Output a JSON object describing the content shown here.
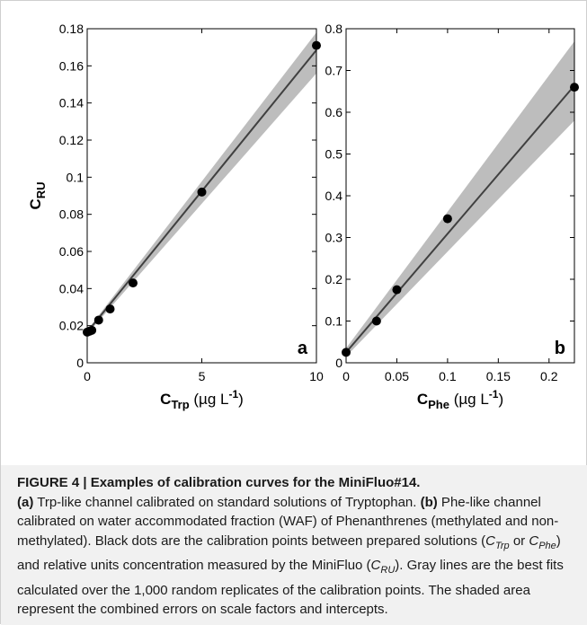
{
  "figure": {
    "caption": {
      "title": "FIGURE 4 | Examples of calibration curves for the MiniFluo#14.",
      "a_marker": "(a)",
      "a_text": " Trp-like channel calibrated on standard solutions of Tryptophan. ",
      "b_marker": "(b)",
      "b_text": " Phe-like channel calibrated on water accommodated fraction (WAF) of Phenanthrenes (methylated and non-methylated). Black dots are the calibration points between prepared solutions (",
      "c_trp_main": "C",
      "c_trp_sub": "Trp",
      "or_text": " or ",
      "c_phe_main": "C",
      "c_phe_sub": "Phe",
      "mid_text": ") and relative units concentration measured by the MiniFluo (",
      "c_ru_main": "C",
      "c_ru_sub": "RU",
      "end_text": "). Gray lines are the best fits calculated over the 1,000 random replicates of the calibration points. The shaded area represent the combined errors on scale factors and intercepts."
    }
  },
  "chart_data": [
    {
      "type": "scatter",
      "panel": "a",
      "ylabel_main": "C",
      "ylabel_sub": "RU",
      "xlabel_main": "C",
      "xlabel_sub": "Trp",
      "xlabel_unit": "(µg L",
      "xlabel_sup": "-1",
      "xlabel_close": ")",
      "xlim": [
        0,
        10
      ],
      "ylim": [
        0,
        0.18
      ],
      "xticks": [
        0,
        5,
        10
      ],
      "xtick_labels": [
        "0",
        "5",
        "10"
      ],
      "yticks": [
        0,
        0.02,
        0.04,
        0.06,
        0.08,
        0.1,
        0.12,
        0.14,
        0.16,
        0.18
      ],
      "ytick_labels": [
        "0",
        "0.02",
        "0.04",
        "0.06",
        "0.08",
        "0.1",
        "0.12",
        "0.14",
        "0.16",
        "0.18"
      ],
      "points": [
        {
          "x": 0,
          "y": 0.0165
        },
        {
          "x": 0.1,
          "y": 0.017
        },
        {
          "x": 0.2,
          "y": 0.0175
        },
        {
          "x": 0.5,
          "y": 0.023
        },
        {
          "x": 1,
          "y": 0.029
        },
        {
          "x": 2,
          "y": 0.043
        },
        {
          "x": 5,
          "y": 0.092
        },
        {
          "x": 10,
          "y": 0.171
        }
      ],
      "fit": {
        "intercept": 0.0165,
        "slope": 0.0152
      },
      "band": {
        "x": [
          0,
          10
        ],
        "lower": [
          0.0155,
          0.156
        ],
        "upper": [
          0.0175,
          0.178
        ]
      },
      "colors": {
        "band": "#bdbdbd",
        "line": "#404040",
        "points": "#000000"
      }
    },
    {
      "type": "scatter",
      "panel": "b",
      "ylabel_main": "",
      "xlabel_main": "C",
      "xlabel_sub": "Phe",
      "xlabel_unit": "(µg L",
      "xlabel_sup": "-1",
      "xlabel_close": ")",
      "xlim": [
        0,
        0.225
      ],
      "ylim": [
        0,
        0.8
      ],
      "xticks": [
        0,
        0.05,
        0.1,
        0.15,
        0.2
      ],
      "xtick_labels": [
        "0",
        "0.05",
        "0.1",
        "0.15",
        "0.2"
      ],
      "yticks": [
        0,
        0.1,
        0.2,
        0.3,
        0.4,
        0.5,
        0.6,
        0.7,
        0.8
      ],
      "ytick_labels": [
        "0",
        "0.1",
        "0.2",
        "0.3",
        "0.4",
        "0.5",
        "0.6",
        "0.7",
        "0.8"
      ],
      "points": [
        {
          "x": 0,
          "y": 0.025
        },
        {
          "x": 0.03,
          "y": 0.1
        },
        {
          "x": 0.05,
          "y": 0.175
        },
        {
          "x": 0.1,
          "y": 0.345
        },
        {
          "x": 0.225,
          "y": 0.66
        }
      ],
      "fit": {
        "intercept": 0.025,
        "slope": 2.84
      },
      "band": {
        "x": [
          0,
          0.225
        ],
        "lower": [
          0.015,
          0.58
        ],
        "upper": [
          0.035,
          0.77
        ]
      },
      "colors": {
        "band": "#bdbdbd",
        "line": "#404040",
        "points": "#000000"
      }
    }
  ]
}
